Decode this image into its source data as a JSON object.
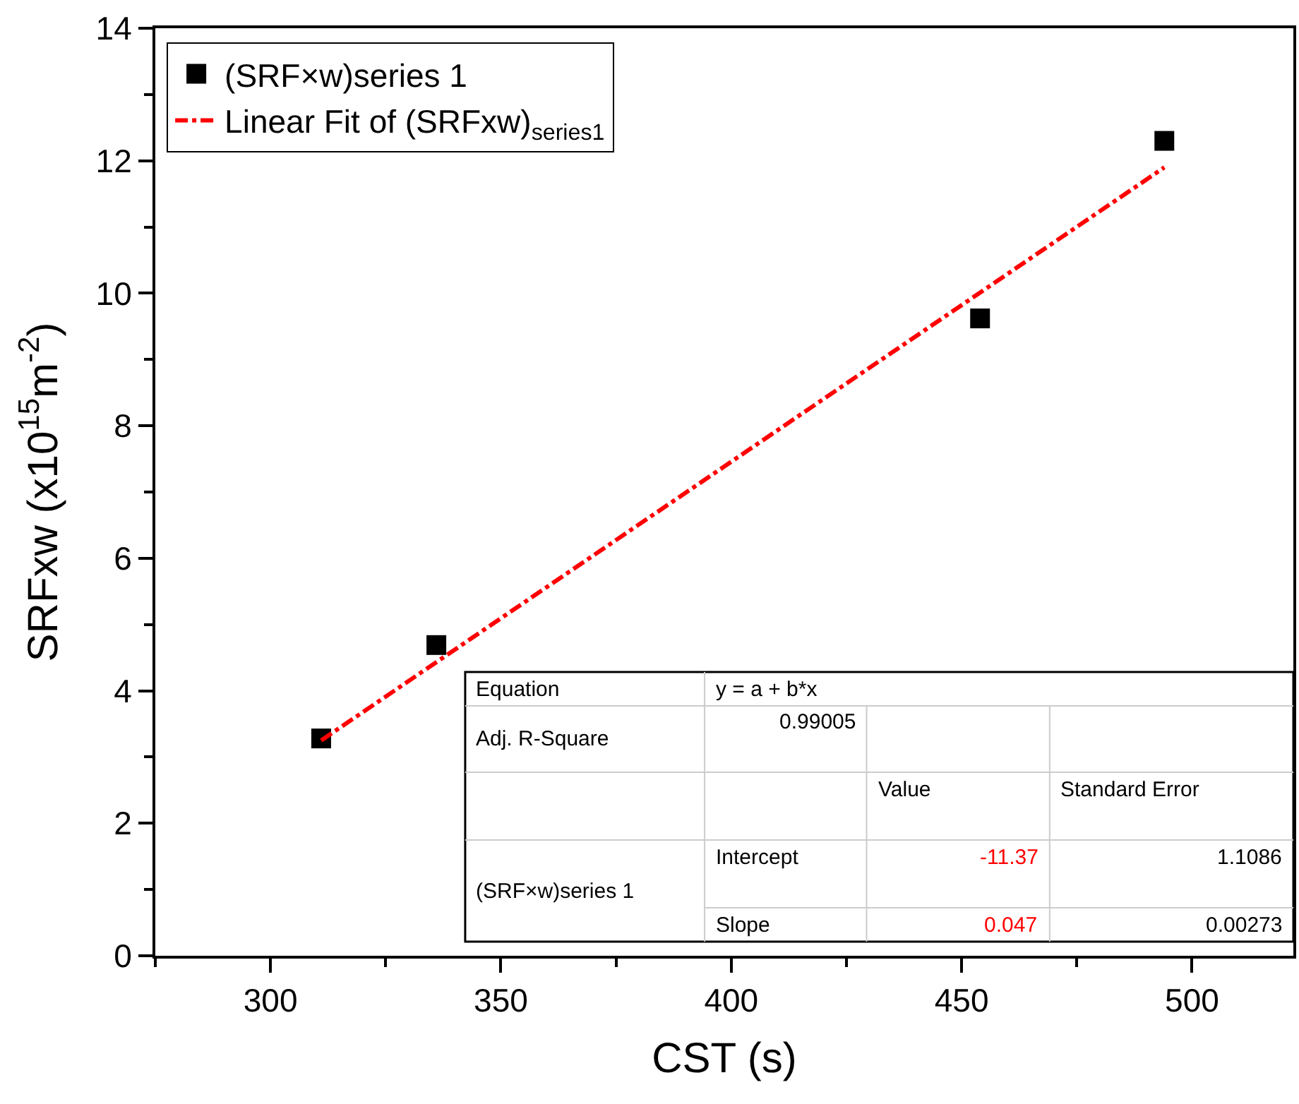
{
  "chart_data": {
    "type": "scatter",
    "xlabel": "CST (s)",
    "ylabel": "SRFxw (x10$^{15}$m$^{-2}$)",
    "xlim": [
      275,
      522
    ],
    "xticks": [
      300,
      350,
      400,
      450,
      500
    ],
    "ylim": [
      0,
      14
    ],
    "yticks": [
      0,
      2,
      4,
      6,
      8,
      10,
      12,
      14
    ],
    "legend": "top left",
    "series": [
      {
        "name": "(SRF×w)series 1",
        "marker": "square",
        "color": "#000000",
        "x": [
          311,
          336,
          454,
          494
        ],
        "values": [
          3.28,
          4.69,
          9.62,
          12.3
        ]
      },
      {
        "name": "Linear Fit of (SRFxw)$_{series1}$",
        "type": "line",
        "marker": "none",
        "line_style": "dashdot",
        "color": "#ff0000",
        "x": [
          311,
          494
        ],
        "values": [
          3.25,
          11.9
        ]
      }
    ],
    "annotations": [
      "Equation",
      "y = a + b*x",
      "Adj. R-Square",
      "0.99005",
      "Value",
      "Standard Error",
      "(SRF×w)series 1",
      "Intercept",
      "-11.37",
      "1.1086",
      "Slope",
      "0.047",
      "0.00273"
    ]
  }
}
